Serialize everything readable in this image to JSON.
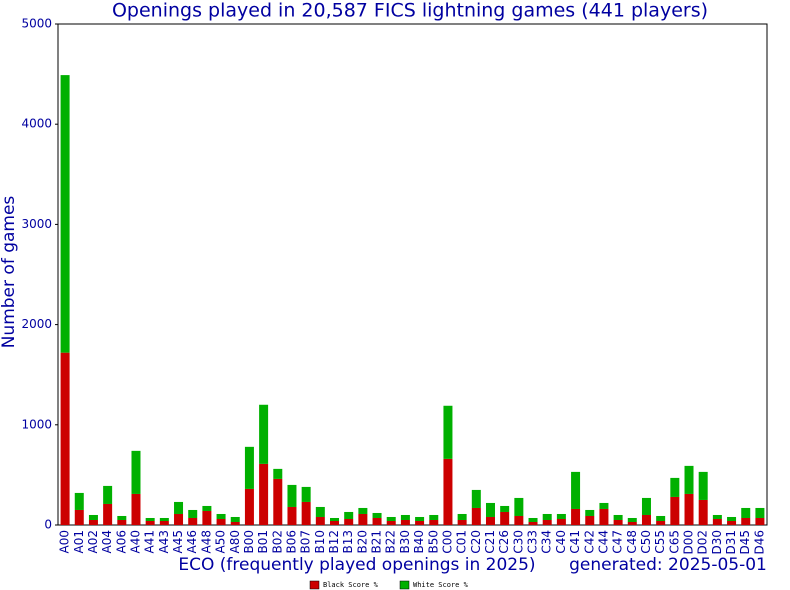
{
  "chart_data": {
    "type": "bar",
    "stacked": true,
    "title": "Openings played in 20,587 FICS lightning games (441 players)",
    "y_label": "Number of games",
    "x_label": "ECO (frequently played openings in 2025)",
    "note": "generated: 2025-05-01",
    "categories": [
      "A00",
      "A01",
      "A02",
      "A04",
      "A06",
      "A40",
      "A41",
      "A43",
      "A45",
      "A46",
      "A48",
      "A50",
      "A80",
      "B00",
      "B01",
      "B02",
      "B06",
      "B07",
      "B10",
      "B12",
      "B13",
      "B20",
      "B21",
      "B22",
      "B30",
      "B40",
      "B50",
      "C00",
      "C01",
      "C20",
      "C21",
      "C26",
      "C30",
      "C33",
      "C34",
      "C40",
      "C41",
      "C42",
      "C44",
      "C47",
      "C48",
      "C50",
      "C55",
      "C65",
      "D00",
      "D02",
      "D30",
      "D31",
      "D45",
      "D46"
    ],
    "series": [
      {
        "name": "Black Score %",
        "color": "#cc0000",
        "values": [
          1720,
          150,
          50,
          210,
          50,
          310,
          40,
          40,
          110,
          70,
          140,
          60,
          30,
          360,
          610,
          460,
          180,
          230,
          80,
          40,
          60,
          110,
          70,
          40,
          50,
          40,
          50,
          660,
          50,
          170,
          80,
          130,
          90,
          30,
          50,
          60,
          160,
          90,
          160,
          50,
          30,
          100,
          40,
          280,
          310,
          250,
          60,
          40,
          70,
          70
        ]
      },
      {
        "name": "White Score %",
        "color": "#00b000",
        "values": [
          2770,
          170,
          50,
          180,
          40,
          430,
          30,
          30,
          120,
          80,
          50,
          50,
          50,
          420,
          590,
          100,
          220,
          150,
          100,
          30,
          70,
          60,
          50,
          40,
          50,
          40,
          50,
          530,
          60,
          180,
          140,
          60,
          180,
          40,
          60,
          50,
          370,
          60,
          60,
          50,
          40,
          170,
          50,
          190,
          280,
          280,
          40,
          40,
          100,
          100
        ]
      }
    ],
    "ylim": [
      0,
      5000
    ],
    "yticks": [
      0,
      1000,
      2000,
      3000,
      4000,
      5000
    ],
    "grid": false,
    "legend": "bottom"
  }
}
